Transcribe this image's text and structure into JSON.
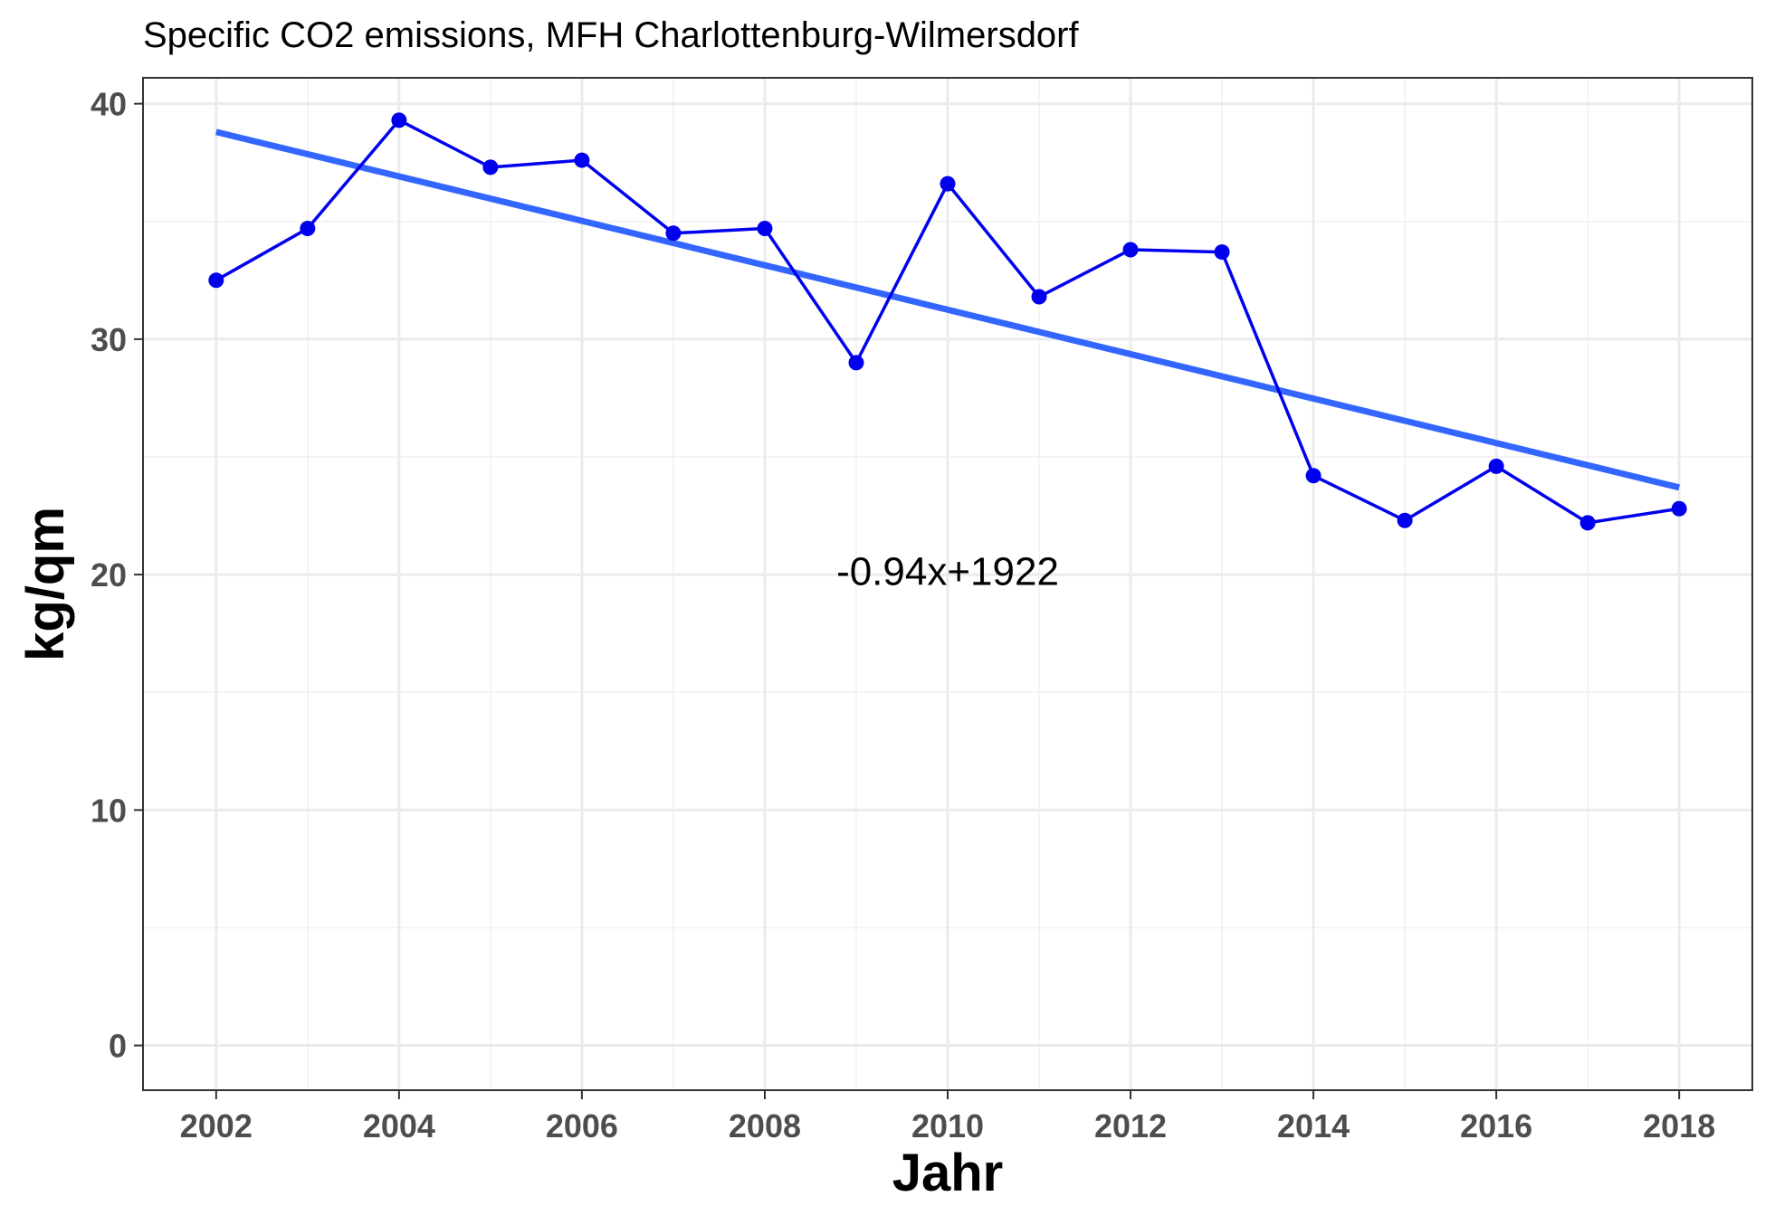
{
  "chart_data": {
    "type": "line",
    "title": "Specific CO2 emissions, MFH Charlottenburg-Wilmersdorf",
    "xlabel": "Jahr",
    "ylabel": "kg/qm",
    "xlim": [
      2001.2,
      2018.8
    ],
    "ylim": [
      -1.9,
      41.1
    ],
    "x_ticks": [
      2002,
      2004,
      2006,
      2008,
      2010,
      2012,
      2014,
      2016,
      2018
    ],
    "y_ticks": [
      0,
      10,
      20,
      30,
      40
    ],
    "grid": true,
    "legend": "none",
    "series": [
      {
        "x": [
          2002,
          2003,
          2004,
          2005,
          2006,
          2007,
          2008,
          2009,
          2010,
          2011,
          2012,
          2013,
          2014,
          2015,
          2016,
          2017,
          2018
        ],
        "y": [
          32.5,
          34.7,
          39.3,
          37.3,
          37.6,
          34.5,
          34.7,
          29.0,
          36.6,
          31.8,
          33.8,
          33.7,
          24.2,
          22.3,
          24.6,
          22.2,
          22.8
        ],
        "color": "#0000ee"
      }
    ],
    "trendline": {
      "x": [
        2002,
        2018
      ],
      "y": [
        38.8,
        23.7
      ],
      "color": "#3366ff"
    },
    "annotation": {
      "text": "-0.94x+1922",
      "x": 2010,
      "y": 20
    }
  }
}
